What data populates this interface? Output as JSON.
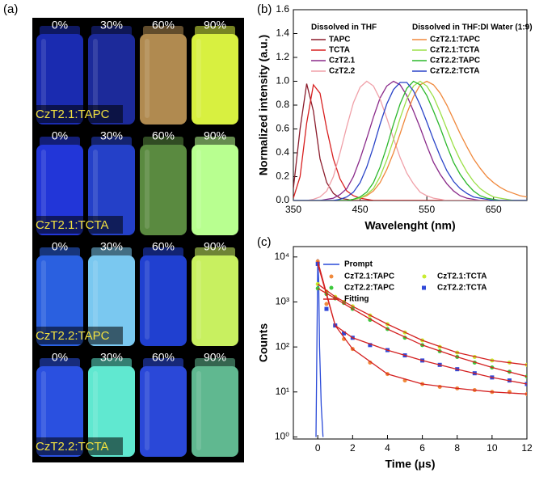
{
  "photo_panel": {
    "label": "(a)",
    "rows": [
      {
        "label": "CzT2.1:TAPC",
        "fractions": [
          "0%",
          "30%",
          "60%",
          "90%"
        ],
        "colors": [
          "#1a2bb0",
          "#1c2a9a",
          "#b08a50",
          "#d8f040"
        ]
      },
      {
        "label": "CzT2.1:TCTA",
        "fractions": [
          "0%",
          "30%",
          "60%",
          "90%"
        ],
        "colors": [
          "#2236d8",
          "#2440c8",
          "#5a8a40",
          "#b8ff90"
        ]
      },
      {
        "label": "CzT2.2:TAPC",
        "fractions": [
          "0%",
          "30%",
          "60%",
          "90%"
        ],
        "colors": [
          "#2a60e0",
          "#7ac8f0",
          "#2040d0",
          "#c8f060"
        ]
      },
      {
        "label": "CzT2.2:TCTA",
        "fractions": [
          "0%",
          "30%",
          "60%",
          "90%"
        ],
        "colors": [
          "#2a50e0",
          "#60e8d0",
          "#2a48d8",
          "#60b890"
        ]
      }
    ]
  },
  "chart_data": [
    {
      "type": "line",
      "label": "(b)",
      "x_label": "Wavelenght (nm)",
      "y_label": "Normalized intensity (a.u.)",
      "legend_titles": [
        "Dissolved in THF",
        "Dissolved in THF:DI Water (1:9)"
      ],
      "xlim": [
        350,
        700
      ],
      "xticks": [
        350,
        450,
        550,
        650
      ],
      "ylim": [
        0,
        1.6
      ],
      "yticks": [
        {
          "value": 0,
          "label": "0.0"
        },
        {
          "value": 0.2,
          "label": "0.2"
        },
        {
          "value": 0.4,
          "label": "0.4"
        },
        {
          "value": 0.6,
          "label": "0.6"
        },
        {
          "value": 0.8,
          "label": "0.8"
        },
        {
          "value": 1.0,
          "label": "1.0"
        },
        {
          "value": 1.2,
          "label": "1.2"
        },
        {
          "value": 1.4,
          "label": "1.4"
        },
        {
          "value": 1.6,
          "label": "1.6"
        }
      ],
      "x": [
        350,
        360,
        370,
        380,
        390,
        400,
        410,
        420,
        430,
        440,
        450,
        460,
        470,
        480,
        490,
        500,
        510,
        520,
        530,
        540,
        550,
        560,
        570,
        580,
        590,
        600,
        610,
        620,
        630,
        640,
        650,
        660,
        670,
        680,
        690,
        700
      ],
      "series": [
        {
          "name": "TAPC",
          "group": 0,
          "color": "#8b1c2c",
          "values": [
            0.1,
            0.6,
            0.98,
            0.75,
            0.35,
            0.15,
            0.06,
            0.02,
            0.01,
            0,
            0,
            0,
            0,
            0,
            0,
            0,
            0,
            0,
            0,
            0,
            0,
            0,
            0,
            0,
            0,
            0,
            0,
            0,
            0,
            0,
            0,
            0,
            0,
            0,
            0,
            0
          ]
        },
        {
          "name": "TCTA",
          "group": 0,
          "color": "#d82020",
          "values": [
            0.02,
            0.2,
            0.65,
            0.97,
            0.9,
            0.6,
            0.35,
            0.18,
            0.08,
            0.04,
            0.02,
            0.01,
            0,
            0,
            0,
            0,
            0,
            0,
            0,
            0,
            0,
            0,
            0,
            0,
            0,
            0,
            0,
            0,
            0,
            0,
            0,
            0,
            0,
            0,
            0,
            0
          ]
        },
        {
          "name": "CzT2.1",
          "group": 0,
          "color": "#8a2a8a",
          "values": [
            0,
            0,
            0,
            0,
            0,
            0.01,
            0.02,
            0.05,
            0.1,
            0.2,
            0.35,
            0.52,
            0.7,
            0.86,
            0.96,
            1,
            0.97,
            0.88,
            0.75,
            0.61,
            0.46,
            0.32,
            0.22,
            0.14,
            0.08,
            0.04,
            0.02,
            0.01,
            0,
            0,
            0,
            0,
            0,
            0,
            0,
            0
          ]
        },
        {
          "name": "CzT2.2",
          "group": 0,
          "color": "#f0a0a8",
          "values": [
            0,
            0,
            0,
            0.01,
            0.03,
            0.08,
            0.2,
            0.4,
            0.62,
            0.82,
            0.95,
            1,
            0.96,
            0.85,
            0.69,
            0.52,
            0.36,
            0.23,
            0.14,
            0.07,
            0.04,
            0.02,
            0.01,
            0,
            0,
            0,
            0,
            0,
            0,
            0,
            0,
            0,
            0,
            0,
            0,
            0
          ]
        },
        {
          "name": "CzT2.1:TAPC",
          "group": 1,
          "color": "#f0883c",
          "values": [
            0,
            0,
            0,
            0,
            0,
            0,
            0,
            0,
            0,
            0.01,
            0.02,
            0.04,
            0.08,
            0.15,
            0.26,
            0.4,
            0.56,
            0.73,
            0.87,
            0.97,
            1,
            0.97,
            0.9,
            0.8,
            0.68,
            0.56,
            0.45,
            0.35,
            0.27,
            0.2,
            0.15,
            0.11,
            0.08,
            0.06,
            0.04,
            0.03
          ]
        },
        {
          "name": "CzT2.1:TCTA",
          "group": 1,
          "color": "#9ce048",
          "values": [
            0,
            0,
            0,
            0,
            0,
            0,
            0,
            0,
            0,
            0.01,
            0.02,
            0.05,
            0.1,
            0.2,
            0.34,
            0.51,
            0.69,
            0.85,
            0.96,
            1,
            0.96,
            0.87,
            0.74,
            0.6,
            0.46,
            0.34,
            0.24,
            0.16,
            0.1,
            0.06,
            0.03,
            0.02,
            0.01,
            0,
            0,
            0
          ]
        },
        {
          "name": "CzT2.2:TAPC",
          "group": 1,
          "color": "#2cb82c",
          "values": [
            0,
            0,
            0,
            0,
            0,
            0,
            0,
            0,
            0,
            0.01,
            0.03,
            0.07,
            0.15,
            0.28,
            0.45,
            0.64,
            0.81,
            0.94,
            1,
            0.97,
            0.88,
            0.75,
            0.61,
            0.46,
            0.32,
            0.22,
            0.14,
            0.08,
            0.04,
            0.02,
            0.01,
            0,
            0,
            0,
            0,
            0
          ]
        },
        {
          "name": "CzT2.2:TCTA",
          "group": 1,
          "color": "#2a44c8",
          "values": [
            0,
            0,
            0,
            0,
            0,
            0,
            0,
            0.01,
            0.03,
            0.07,
            0.15,
            0.28,
            0.45,
            0.64,
            0.81,
            0.93,
            0.99,
            0.99,
            0.92,
            0.8,
            0.66,
            0.51,
            0.37,
            0.25,
            0.16,
            0.1,
            0.06,
            0.03,
            0.02,
            0.01,
            0,
            0,
            0,
            0,
            0,
            0
          ]
        }
      ]
    },
    {
      "type": "scatter",
      "label": "(c)",
      "x_label": "Time (μs)",
      "y_label": "Counts",
      "log_y": true,
      "xlim": [
        -1.4,
        12
      ],
      "xticks": [
        0,
        2,
        4,
        6,
        8,
        10,
        12
      ],
      "ylim": [
        0.9,
        17000
      ],
      "yticks": [
        {
          "value": 1,
          "label": "10⁰"
        },
        {
          "value": 10,
          "label": "10¹"
        },
        {
          "value": 100,
          "label": "10²"
        },
        {
          "value": 1000,
          "label": "10³"
        },
        {
          "value": 10000,
          "label": "10⁴"
        }
      ],
      "series": [
        {
          "name": "Prompt",
          "mode": "line",
          "color": "#2a4ad8",
          "x": [
            -0.1,
            0,
            0.05,
            0.1,
            0.2,
            0.3
          ],
          "values": [
            1,
            9000,
            3000,
            100,
            5,
            1
          ]
        },
        {
          "name": "CzT2.1:TAPC",
          "mode": "markers",
          "marker": "circle",
          "color": "#f08a3c",
          "x": [
            0,
            0.5,
            1,
            1.5,
            2,
            3,
            4,
            5,
            6,
            7,
            8,
            9,
            10,
            11,
            12
          ],
          "values": [
            8000,
            900,
            300,
            150,
            90,
            45,
            25,
            18,
            15,
            13,
            12,
            11,
            10,
            10,
            9
          ]
        },
        {
          "name": "CzT2.1:TCTA",
          "mode": "markers",
          "marker": "circle",
          "color": "#c8ec30",
          "x": [
            0,
            0.5,
            1,
            1.5,
            2,
            3,
            4,
            5,
            6,
            7,
            8,
            9,
            10,
            11,
            12
          ],
          "values": [
            2500,
            1700,
            1300,
            1000,
            800,
            500,
            320,
            210,
            140,
            100,
            75,
            60,
            50,
            45,
            40
          ]
        },
        {
          "name": "CzT2.2:TAPC",
          "mode": "markers",
          "marker": "circle",
          "color": "#3cc83c",
          "x": [
            0,
            0.5,
            1,
            1.5,
            2,
            3,
            4,
            5,
            6,
            7,
            8,
            9,
            10,
            11,
            12
          ],
          "values": [
            2000,
            1500,
            1200,
            950,
            700,
            400,
            250,
            160,
            110,
            80,
            60,
            45,
            35,
            28,
            22
          ]
        },
        {
          "name": "CzT2.2:TCTA",
          "mode": "markers",
          "marker": "square",
          "color": "#3048d8",
          "x": [
            0,
            0.5,
            1,
            1.5,
            2,
            3,
            4,
            5,
            6,
            7,
            8,
            9,
            10,
            11,
            12
          ],
          "values": [
            7000,
            700,
            300,
            200,
            160,
            110,
            85,
            65,
            50,
            40,
            32,
            26,
            21,
            18,
            15
          ]
        },
        {
          "name": "Fitting",
          "mode": "line",
          "color": "#d42020",
          "x": [
            0,
            1,
            2,
            4,
            6,
            8,
            10,
            12,
            null,
            0,
            1,
            2,
            4,
            6,
            8,
            10,
            12,
            null,
            0,
            1,
            2,
            4,
            6,
            8,
            10,
            12,
            null,
            0,
            1,
            2,
            4,
            6,
            8,
            10,
            12
          ],
          "values": [
            8000,
            300,
            90,
            25,
            15,
            12,
            10,
            9,
            null,
            2500,
            1300,
            800,
            320,
            140,
            75,
            50,
            40,
            null,
            2000,
            1200,
            700,
            250,
            110,
            60,
            35,
            22,
            null,
            7000,
            300,
            160,
            85,
            50,
            32,
            21,
            15
          ]
        }
      ]
    }
  ]
}
